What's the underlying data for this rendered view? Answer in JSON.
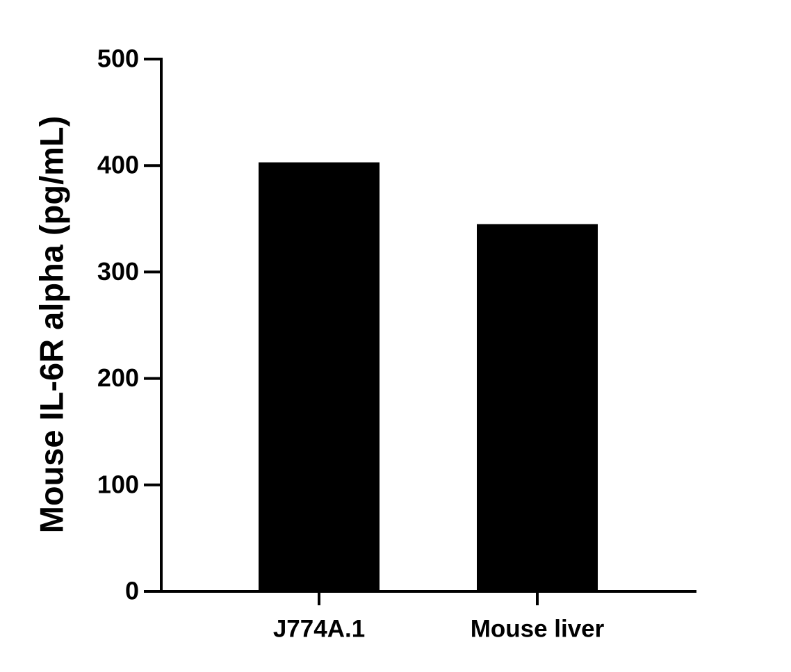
{
  "chart_data": {
    "type": "bar",
    "y_label": "Mouse IL-6R alpha (pg/mL)",
    "categories": [
      "J774A.1",
      "Mouse liver"
    ],
    "values": [
      403,
      345
    ],
    "color": "#000000",
    "ylim": [
      0,
      500
    ],
    "yticks": [
      0,
      100,
      200,
      300,
      400,
      500
    ],
    "grid": false
  }
}
